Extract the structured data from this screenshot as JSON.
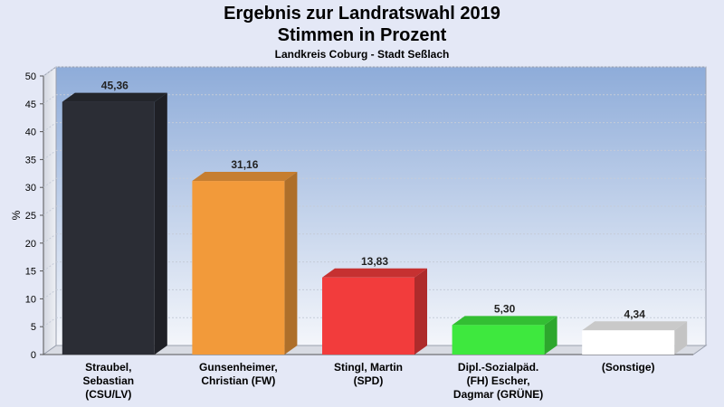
{
  "chart_data": {
    "type": "bar",
    "title": "Ergebnis zur Landratswahl 2019",
    "title_line2": "Stimmen in Prozent",
    "subtitle": "Landkreis Coburg - Stadt Seßlach",
    "ylabel": "%",
    "ylim": [
      0,
      50
    ],
    "yticks": [
      "0",
      "5",
      "10",
      "15",
      "20",
      "25",
      "30",
      "35",
      "40",
      "45",
      "50"
    ],
    "categories": [
      [
        "Straubel,",
        "Sebastian",
        "(CSU/LV)"
      ],
      [
        "Gunsenheimer,",
        "Christian (FW)"
      ],
      [
        "Stingl, Martin",
        "(SPD)"
      ],
      [
        "Dipl.-Sozialpäd.",
        "(FH) Escher,",
        "Dagmar (GRÜNE)"
      ],
      [
        "(Sonstige)"
      ]
    ],
    "values": [
      45.36,
      31.16,
      13.83,
      5.3,
      4.34
    ],
    "value_labels": [
      "45,36",
      "31,16",
      "13,83",
      "5,30",
      "4,34"
    ],
    "colors": [
      "#2b2d35",
      "#f29a3a",
      "#f23c3c",
      "#3ee83e",
      "#ffffff"
    ],
    "grid": true
  }
}
